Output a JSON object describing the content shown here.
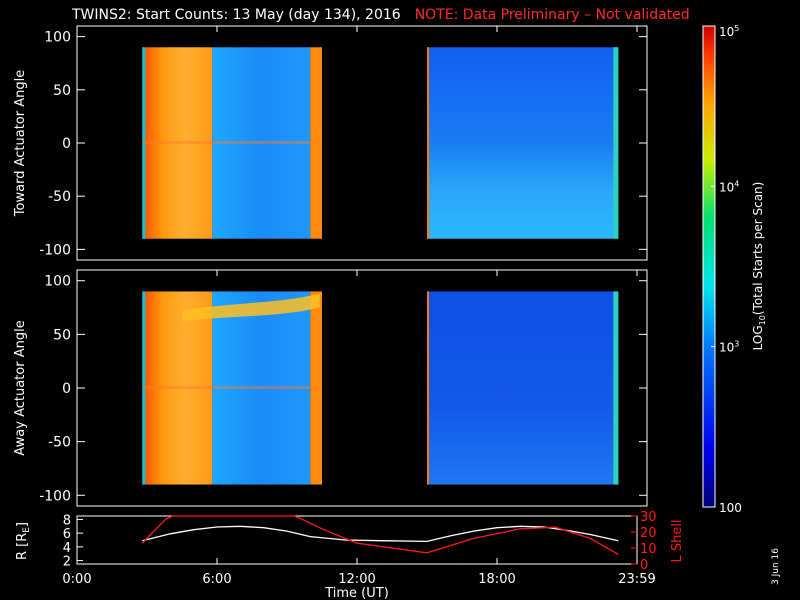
{
  "header": {
    "title": "TWINS2: Start Counts: 13 May (day 134), 2016",
    "note": "NOTE: Data Preliminary – Not validated"
  },
  "stamp": "3 Jun 16",
  "colors": {
    "background": "#000000",
    "axes": "#ffffff",
    "note": "#ff2a2a",
    "r_line": "#ffffff",
    "lshell_line": "#ff1a1a"
  },
  "chart_data": [
    {
      "type": "heatmap",
      "ylabel": "Toward Actuator Angle",
      "ylim": [
        -110,
        110
      ],
      "yticks": [
        -100,
        -50,
        0,
        50,
        100
      ],
      "xlim": [
        0,
        24
      ],
      "data_blocks": [
        {
          "x_range": [
            2.8,
            10.5
          ],
          "y_range": [
            -90,
            90
          ]
        },
        {
          "x_range": [
            15.0,
            23.2
          ],
          "y_range": [
            -90,
            90
          ]
        }
      ],
      "colorscale": "rainbow"
    },
    {
      "type": "heatmap",
      "ylabel": "Away Actuator Angle",
      "ylim": [
        -110,
        110
      ],
      "yticks": [
        -100,
        -50,
        0,
        50,
        100
      ],
      "xlim": [
        0,
        24
      ],
      "data_blocks": [
        {
          "x_range": [
            2.8,
            10.5
          ],
          "y_range": [
            -90,
            90
          ]
        },
        {
          "x_range": [
            15.0,
            23.2
          ],
          "y_range": [
            -90,
            90
          ]
        }
      ],
      "colorscale": "rainbow"
    },
    {
      "type": "line",
      "xlabel": "Time (UT)",
      "xlim": [
        0,
        24
      ],
      "xticks": [
        0,
        6,
        12,
        18,
        24
      ],
      "xtick_labels": [
        "0:00",
        "6:00",
        "12:00",
        "18:00",
        "23:59"
      ],
      "ylabel_left": "R [R",
      "ylabel_left_sub": "E",
      "ylabel_left_end": "]",
      "ylim_left": [
        1.5,
        8.5
      ],
      "yticks_left": [
        2,
        4,
        6,
        8
      ],
      "ylabel_right": "L Shell",
      "ylim_right": [
        0,
        30
      ],
      "yticks_right": [
        0,
        10,
        20,
        30
      ],
      "series": [
        {
          "axis": "left",
          "x": [
            2.8,
            4,
            5,
            6,
            7,
            8,
            9,
            10,
            11.5,
            13,
            15,
            16,
            17,
            18,
            19,
            20,
            21,
            22,
            23.2
          ],
          "y": [
            4.9,
            5.9,
            6.5,
            6.9,
            7.0,
            6.8,
            6.3,
            5.5,
            5.0,
            4.9,
            4.8,
            5.6,
            6.3,
            6.8,
            7.0,
            6.9,
            6.4,
            5.8,
            4.9
          ]
        },
        {
          "axis": "right",
          "x": [
            2.8,
            3.8,
            4.1,
            9.3,
            9.5,
            10.5,
            12,
            15,
            17,
            19,
            20.5,
            22,
            23.2
          ],
          "y": [
            13,
            28,
            30,
            30,
            29,
            22,
            13,
            7,
            16,
            22,
            23,
            16,
            6
          ]
        }
      ]
    },
    {
      "type": "heatmap",
      "ylabel": "LOG",
      "ylabel_sub": "10",
      "ylabel_rest": "(Total Starts per Scan)",
      "colorbar_ticks": [
        {
          "base": "10",
          "exp": "5",
          "value": 100000
        },
        {
          "base": "10",
          "exp": "4",
          "value": 10000
        },
        {
          "base": "10",
          "exp": "3",
          "value": 1000
        },
        {
          "base": "100",
          "exp": "",
          "value": 100
        }
      ],
      "range": [
        100,
        100000
      ]
    }
  ]
}
